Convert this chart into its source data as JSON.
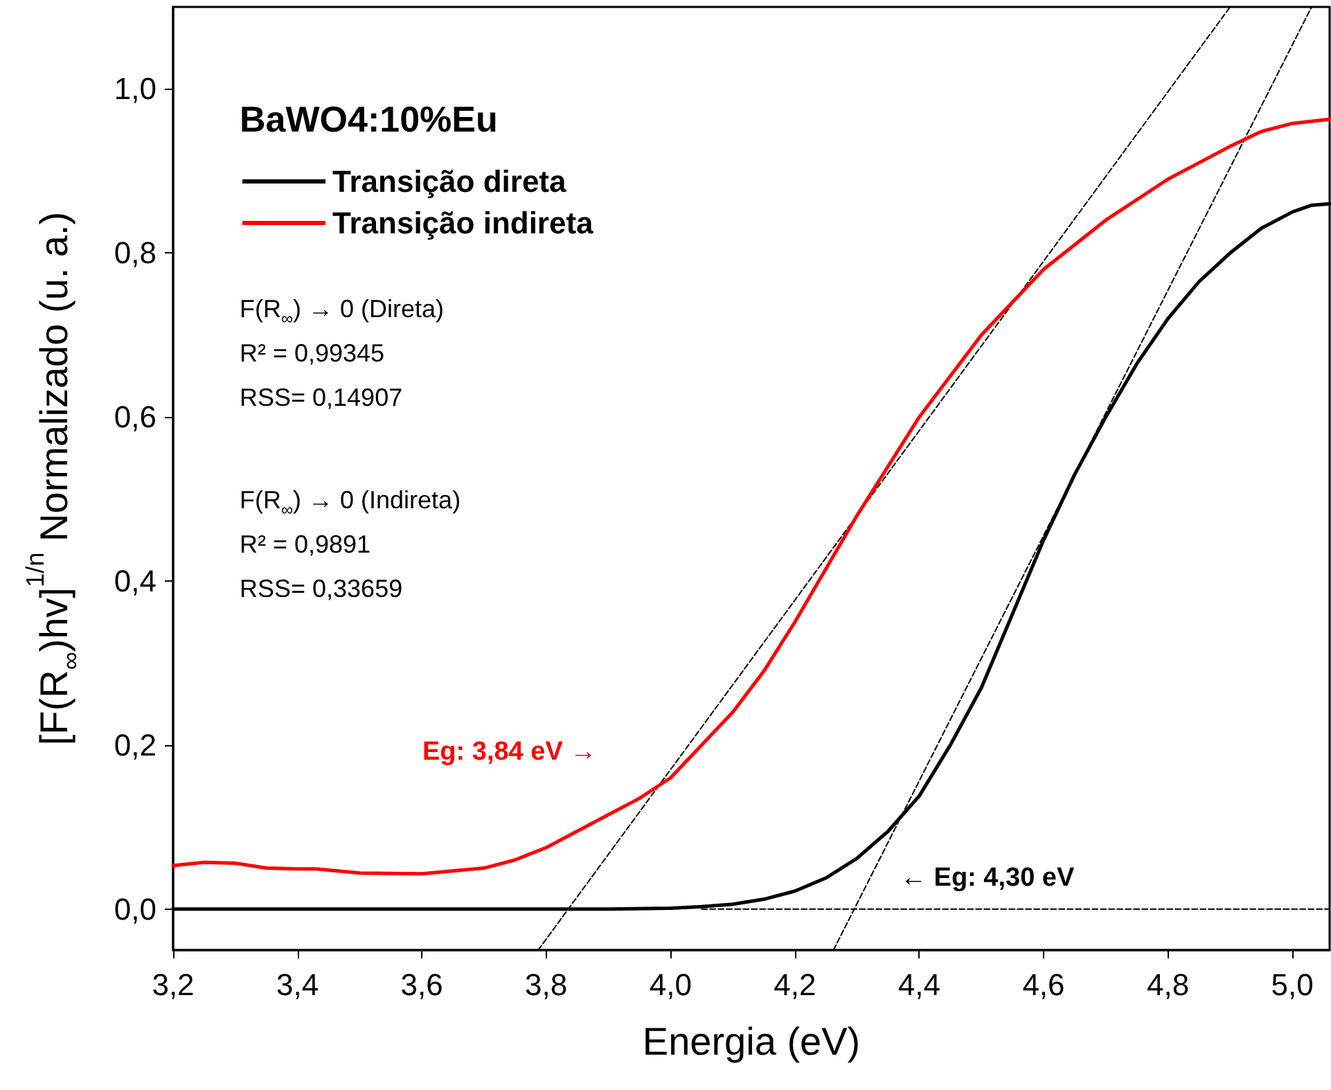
{
  "chart_data": {
    "type": "line",
    "title": "BaWO4:10%Eu",
    "xlabel": "Energia (eV)",
    "ylabel": "[F(R$_{∞}$)hv]$^{1/n}$ Normalizado (u. a.)",
    "xlim": [
      3.2,
      5.06
    ],
    "ylim": [
      -0.05,
      1.1
    ],
    "xticks": [
      {
        "value": 3.2,
        "label": "3,2"
      },
      {
        "value": 3.4,
        "label": "3,4"
      },
      {
        "value": 3.6,
        "label": "3,6"
      },
      {
        "value": 3.8,
        "label": "3,8"
      },
      {
        "value": 4.0,
        "label": "4,0"
      },
      {
        "value": 4.2,
        "label": "4,2"
      },
      {
        "value": 4.4,
        "label": "4,4"
      },
      {
        "value": 4.6,
        "label": "4,6"
      },
      {
        "value": 4.8,
        "label": "4,8"
      },
      {
        "value": 5.0,
        "label": "5,0"
      }
    ],
    "yticks": [
      {
        "value": 0,
        "label": "0,0"
      },
      {
        "value": 0.2,
        "label": "0,2"
      },
      {
        "value": 0.4,
        "label": "0,4"
      },
      {
        "value": 0.6,
        "label": "0,6"
      },
      {
        "value": 0.8,
        "label": "0,8"
      },
      {
        "value": 1.0,
        "label": "1,0"
      }
    ],
    "legend": "top left",
    "grid": false,
    "marker": "none",
    "annotations": [
      "F(R$_{∞}$) → 0 (Direta)\nR² = 0,99345\nRSS= 0,14907",
      "F(R$_{∞}$) → 0 (Indireta)\nR² = 0,9891\nRSS= 0,33659",
      "Eg: 3,84 eV →",
      "← Eg: 4,30 eV"
    ],
    "series": [
      {
        "name": "Transição direta",
        "color": "#000000",
        "x": [
          3.2,
          3.4,
          3.6,
          3.8,
          3.9,
          4.0,
          4.05,
          4.1,
          4.15,
          4.2,
          4.25,
          4.3,
          4.35,
          4.4,
          4.45,
          4.5,
          4.55,
          4.6,
          4.65,
          4.7,
          4.75,
          4.8,
          4.85,
          4.9,
          4.95,
          5.0,
          5.03,
          5.06
        ],
        "values": [
          0,
          0,
          0,
          0,
          0,
          0.001,
          0.003,
          0.006,
          0.012,
          0.022,
          0.038,
          0.062,
          0.095,
          0.138,
          0.2,
          0.27,
          0.36,
          0.45,
          0.53,
          0.6,
          0.665,
          0.72,
          0.765,
          0.8,
          0.83,
          0.85,
          0.858,
          0.86
        ]
      },
      {
        "name": "Transição indireta",
        "color": "#ff0000",
        "x": [
          3.2,
          3.25,
          3.3,
          3.35,
          3.4,
          3.43,
          3.5,
          3.6,
          3.7,
          3.75,
          3.8,
          3.85,
          3.9,
          3.95,
          4.0,
          4.05,
          4.1,
          4.15,
          4.2,
          4.25,
          4.3,
          4.35,
          4.4,
          4.5,
          4.6,
          4.7,
          4.8,
          4.9,
          4.95,
          5.0,
          5.06
        ],
        "values": [
          0.053,
          0.057,
          0.056,
          0.05,
          0.049,
          0.049,
          0.044,
          0.043,
          0.05,
          0.06,
          0.075,
          0.095,
          0.115,
          0.135,
          0.16,
          0.2,
          0.24,
          0.29,
          0.35,
          0.415,
          0.48,
          0.54,
          0.6,
          0.7,
          0.78,
          0.84,
          0.89,
          0.93,
          0.948,
          0.958,
          0.963
        ]
      },
      {
        "color": "#000000",
        "line_style": "dashed",
        "x": [
          3.787,
          4.9
        ],
        "values": [
          -0.05,
          1.1
        ]
      },
      {
        "color": "#000000",
        "line_style": "dashed",
        "x": [
          4.262,
          5.031
        ],
        "values": [
          -0.05,
          1.1
        ]
      },
      {
        "color": "#000000",
        "line_style": "dashed",
        "x": [
          4.05,
          5.06
        ],
        "values": [
          0,
          0
        ]
      }
    ]
  }
}
